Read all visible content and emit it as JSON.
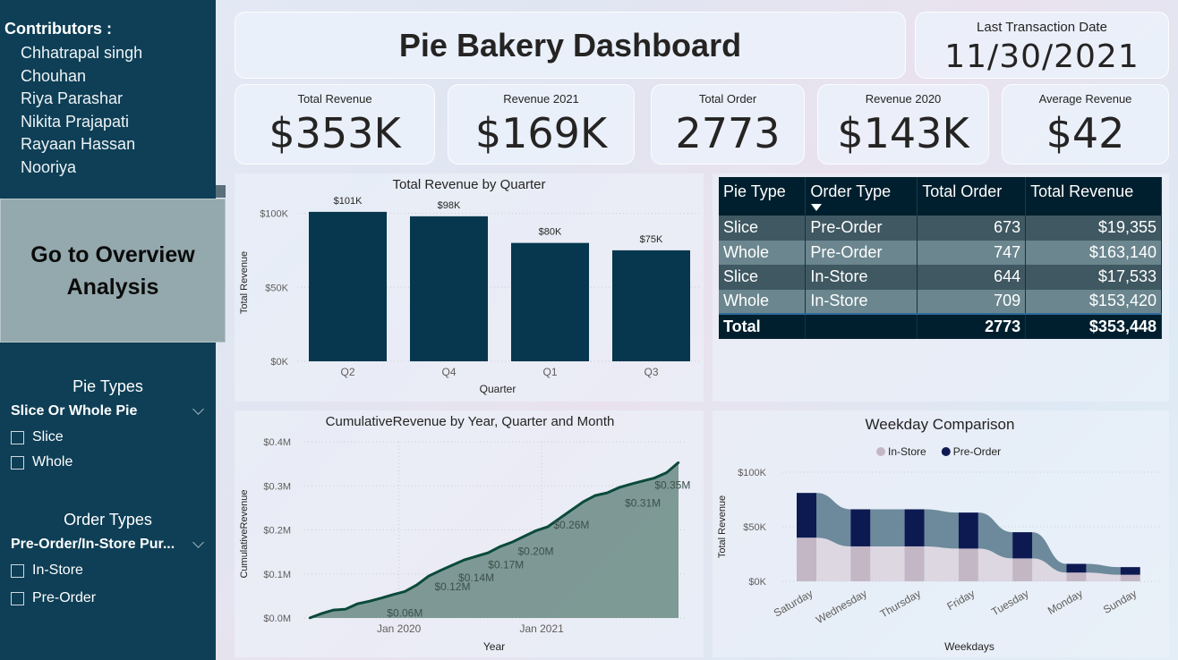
{
  "sidebar": {
    "contributors_title": "Contributors :",
    "contributors": [
      "Chhatrapal singh",
      "Chouhan",
      "Riya Parashar",
      "Nikita Prajapati",
      "Rayaan Hassan",
      "Nooriya"
    ],
    "overview_button": "Go to Overview\nAnalysis",
    "pie_types": {
      "heading": "Pie Types",
      "selected": "Slice Or Whole Pie",
      "options": [
        "Slice",
        "Whole"
      ]
    },
    "order_types": {
      "heading": "Order Types",
      "selected": "Pre-Order/In-Store Pur...",
      "options": [
        "In-Store",
        "Pre-Order"
      ]
    }
  },
  "header": {
    "title": "Pie Bakery Dashboard",
    "last_transaction_label": "Last Transaction Date",
    "last_transaction_date": "11/30/2021"
  },
  "kpis": [
    {
      "label": "Total Revenue",
      "value": "$353K"
    },
    {
      "label": "Revenue 2021",
      "value": "$169K"
    },
    {
      "label": "Total Order",
      "value": "2773"
    },
    {
      "label": "Revenue 2020",
      "value": "$143K"
    },
    {
      "label": "Average Revenue",
      "value": "$42"
    }
  ],
  "table": {
    "headers": [
      "Pie Type",
      "Order Type",
      "Total Order",
      "Total Revenue"
    ],
    "rows": [
      [
        "Slice",
        "Pre-Order",
        "673",
        "$19,355"
      ],
      [
        "Whole",
        "Pre-Order",
        "747",
        "$163,140"
      ],
      [
        "Slice",
        "In-Store",
        "644",
        "$17,533"
      ],
      [
        "Whole",
        "In-Store",
        "709",
        "$153,420"
      ]
    ],
    "total": [
      "Total",
      "",
      "2773",
      "$353,448"
    ]
  },
  "chart_data": [
    {
      "type": "bar",
      "title": "Total Revenue by Quarter",
      "xlabel": "Quarter",
      "ylabel": "Total Revenue",
      "categories": [
        "Q2",
        "Q4",
        "Q1",
        "Q3"
      ],
      "values": [
        101,
        98,
        80,
        75
      ],
      "data_labels": [
        "$101K",
        "$98K",
        "$80K",
        "$75K"
      ],
      "y_ticks": [
        "$0K",
        "$50K",
        "$100K"
      ],
      "y_tick_values": [
        0,
        50,
        100
      ],
      "ylim": [
        0,
        110
      ],
      "color": "#06374e",
      "grid": true
    },
    {
      "type": "area",
      "title": "CumulativeRevenue by Year, Quarter and Month",
      "xlabel": "Year",
      "ylabel": "CumulativeRevenue",
      "x_ticks": [
        "Jan 2020",
        "Jan 2021"
      ],
      "y_ticks": [
        "$0.0M",
        "$0.1M",
        "$0.2M",
        "$0.3M",
        "$0.4M"
      ],
      "y_tick_values": [
        0,
        0.1,
        0.2,
        0.3,
        0.4
      ],
      "ylim": [
        0,
        0.4
      ],
      "x": [
        0,
        1,
        2,
        3,
        4,
        5,
        6,
        7,
        8,
        9,
        10,
        11,
        12,
        13,
        14,
        15,
        16,
        17,
        18,
        19,
        20,
        21,
        22,
        23,
        24,
        25,
        26,
        27,
        28,
        29,
        30,
        31
      ],
      "values": [
        0.0,
        0.01,
        0.018,
        0.02,
        0.032,
        0.038,
        0.045,
        0.053,
        0.06,
        0.075,
        0.095,
        0.108,
        0.12,
        0.132,
        0.14,
        0.148,
        0.162,
        0.172,
        0.185,
        0.198,
        0.207,
        0.226,
        0.245,
        0.264,
        0.278,
        0.284,
        0.296,
        0.304,
        0.311,
        0.318,
        0.33,
        0.353
      ],
      "annotations": [
        {
          "label": "$0.06M",
          "x": 8,
          "y": 0.06
        },
        {
          "label": "$0.12M",
          "x": 12,
          "y": 0.12
        },
        {
          "label": "$0.14M",
          "x": 14,
          "y": 0.14
        },
        {
          "label": "$0.17M",
          "x": 16.5,
          "y": 0.17
        },
        {
          "label": "$0.20M",
          "x": 19,
          "y": 0.2
        },
        {
          "label": "$0.26M",
          "x": 22,
          "y": 0.26
        },
        {
          "label": "$0.31M",
          "x": 28,
          "y": 0.31
        },
        {
          "label": "$0.35M",
          "x": 30.5,
          "y": 0.35
        }
      ],
      "line_color": "#0b4a3a",
      "fill_color": "#6b8b84"
    },
    {
      "type": "ribbon",
      "title": "Weekday Comparison",
      "xlabel": "Weekdays",
      "ylabel": "Total Revenue",
      "categories": [
        "Saturday",
        "Wednesday",
        "Thursday",
        "Friday",
        "Tuesday",
        "Monday",
        "Sunday"
      ],
      "y_ticks": [
        "$0K",
        "$50K",
        "$100K"
      ],
      "y_tick_values": [
        0,
        50,
        100
      ],
      "ylim": [
        0,
        100
      ],
      "legend_position": "top-center",
      "series": [
        {
          "name": "In-Store",
          "values": [
            40,
            32,
            32,
            30,
            21,
            8,
            6
          ],
          "color": "#c3b7c6"
        },
        {
          "name": "Pre-Order",
          "values": [
            41,
            34,
            34,
            33,
            24,
            8,
            7
          ],
          "color": "#0d1a52"
        }
      ],
      "ribbon_colors": {
        "In-Store": "#d9cfdb",
        "Pre-Order": "#56788b"
      }
    }
  ]
}
